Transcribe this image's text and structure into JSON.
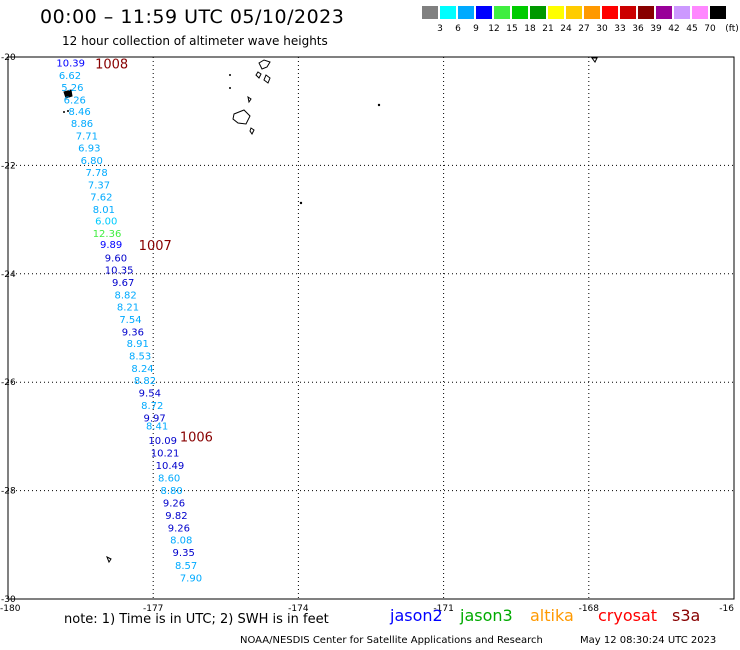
{
  "header": {
    "title": "00:00 – 11:59 UTC 05/10/2023",
    "subtitle": "12 hour collection of altimeter wave heights"
  },
  "legend": {
    "unit_label": "(ft)",
    "bins": [
      {
        "label": "3",
        "color": "#808080"
      },
      {
        "label": "6",
        "color": "#00ffff"
      },
      {
        "label": "9",
        "color": "#00aaff"
      },
      {
        "label": "12",
        "color": "#0000ff"
      },
      {
        "label": "15",
        "color": "#40ee40"
      },
      {
        "label": "18",
        "color": "#00cc00"
      },
      {
        "label": "21",
        "color": "#009900"
      },
      {
        "label": "24",
        "color": "#ffff00"
      },
      {
        "label": "27",
        "color": "#ffcc00"
      },
      {
        "label": "30",
        "color": "#ff9900"
      },
      {
        "label": "33",
        "color": "#ff0000"
      },
      {
        "label": "36",
        "color": "#cc0000"
      },
      {
        "label": "39",
        "color": "#880000"
      },
      {
        "label": "42",
        "color": "#990099"
      },
      {
        "label": "45",
        "color": "#cc99ff"
      },
      {
        "label": "70",
        "color": "#ff88ff"
      },
      {
        "label": "",
        "color": "#000000"
      }
    ]
  },
  "axes": {
    "lon_labels": [
      "-180",
      "-177",
      "-174",
      "-171",
      "-168",
      "-16"
    ],
    "lat_labels": [
      "-20",
      "-22",
      "-24",
      "-26",
      "-28",
      "-30"
    ]
  },
  "pressure_labels": [
    {
      "text": "1008",
      "lon": -178.2,
      "lat": -20.1
    },
    {
      "text": "1007",
      "lon": -177.3,
      "lat": -23.45
    },
    {
      "text": "1006",
      "lon": -176.45,
      "lat": -26.98
    }
  ],
  "wave_heights": [
    {
      "v": "10.39",
      "lon": -179.0,
      "lat": -20.1,
      "color": "#0000ff"
    },
    {
      "v": "6.62",
      "lon": -178.95,
      "lat": -20.33,
      "color": "#00aaff"
    },
    {
      "v": "5.26",
      "lon": -178.9,
      "lat": -20.55,
      "color": "#00aaff"
    },
    {
      "v": "6.26",
      "lon": -178.85,
      "lat": -20.78,
      "color": "#00aaff"
    },
    {
      "v": "8.46",
      "lon": -178.75,
      "lat": -21.0,
      "color": "#00aaff"
    },
    {
      "v": "8.86",
      "lon": -178.7,
      "lat": -21.22,
      "color": "#00aaff"
    },
    {
      "v": "7.71",
      "lon": -178.6,
      "lat": -21.45,
      "color": "#00aaff"
    },
    {
      "v": "6.93",
      "lon": -178.55,
      "lat": -21.67,
      "color": "#00aaff"
    },
    {
      "v": "6.80",
      "lon": -178.5,
      "lat": -21.9,
      "color": "#00aaff"
    },
    {
      "v": "7.78",
      "lon": -178.4,
      "lat": -22.12,
      "color": "#00aaff"
    },
    {
      "v": "7.37",
      "lon": -178.35,
      "lat": -22.35,
      "color": "#00aaff"
    },
    {
      "v": "7.62",
      "lon": -178.3,
      "lat": -22.57,
      "color": "#00aaff"
    },
    {
      "v": "8.01",
      "lon": -178.25,
      "lat": -22.8,
      "color": "#00aaff"
    },
    {
      "v": "6.00",
      "lon": -178.2,
      "lat": -23.02,
      "color": "#00ccff"
    },
    {
      "v": "12.36",
      "lon": -178.25,
      "lat": -23.25,
      "color": "#40ee40"
    },
    {
      "v": "9.89",
      "lon": -178.1,
      "lat": -23.45,
      "color": "#0000ff"
    },
    {
      "v": "9.60",
      "lon": -178.0,
      "lat": -23.7,
      "color": "#0000cc"
    },
    {
      "v": "10.35",
      "lon": -178.0,
      "lat": -23.92,
      "color": "#0000cc"
    },
    {
      "v": "9.67",
      "lon": -177.85,
      "lat": -24.15,
      "color": "#0000cc"
    },
    {
      "v": "8.82",
      "lon": -177.8,
      "lat": -24.38,
      "color": "#00aaff"
    },
    {
      "v": "8.21",
      "lon": -177.75,
      "lat": -24.6,
      "color": "#00aaff"
    },
    {
      "v": "7.54",
      "lon": -177.7,
      "lat": -24.83,
      "color": "#00aaff"
    },
    {
      "v": "9.36",
      "lon": -177.65,
      "lat": -25.06,
      "color": "#0000cc"
    },
    {
      "v": "8.91",
      "lon": -177.55,
      "lat": -25.28,
      "color": "#00aaff"
    },
    {
      "v": "8.53",
      "lon": -177.5,
      "lat": -25.51,
      "color": "#00aaff"
    },
    {
      "v": "8.24",
      "lon": -177.45,
      "lat": -25.74,
      "color": "#00aaff"
    },
    {
      "v": "8.82",
      "lon": -177.4,
      "lat": -25.96,
      "color": "#00aaff"
    },
    {
      "v": "9.54",
      "lon": -177.3,
      "lat": -26.19,
      "color": "#0000cc"
    },
    {
      "v": "8.72",
      "lon": -177.25,
      "lat": -26.42,
      "color": "#00aaff"
    },
    {
      "v": "9.97",
      "lon": -177.2,
      "lat": -26.65,
      "color": "#0000cc"
    },
    {
      "v": "8.41",
      "lon": -177.15,
      "lat": -26.8,
      "color": "#00aaff"
    },
    {
      "v": "10.09",
      "lon": -177.1,
      "lat": -27.07,
      "color": "#0000cc"
    },
    {
      "v": "10.21",
      "lon": -177.05,
      "lat": -27.3,
      "color": "#0000cc"
    },
    {
      "v": "10.49",
      "lon": -176.95,
      "lat": -27.53,
      "color": "#0000cc"
    },
    {
      "v": "8.60",
      "lon": -176.9,
      "lat": -27.76,
      "color": "#00aaff"
    },
    {
      "v": "8.80",
      "lon": -176.85,
      "lat": -27.99,
      "color": "#00aaff"
    },
    {
      "v": "9.26",
      "lon": -176.8,
      "lat": -28.22,
      "color": "#0000cc"
    },
    {
      "v": "9.82",
      "lon": -176.75,
      "lat": -28.45,
      "color": "#0000cc"
    },
    {
      "v": "9.26",
      "lon": -176.7,
      "lat": -28.68,
      "color": "#0000cc"
    },
    {
      "v": "8.08",
      "lon": -176.65,
      "lat": -28.9,
      "color": "#00aaff"
    },
    {
      "v": "9.35",
      "lon": -176.6,
      "lat": -29.13,
      "color": "#0000cc"
    },
    {
      "v": "8.57",
      "lon": -176.55,
      "lat": -29.37,
      "color": "#00aaff"
    },
    {
      "v": "7.90",
      "lon": -176.45,
      "lat": -29.6,
      "color": "#00aaff"
    }
  ],
  "footer": {
    "note": "note: 1) Time is in UTC; 2) SWH is in feet",
    "satellites": [
      {
        "name": "jason2",
        "color": "#0000ff"
      },
      {
        "name": "jason3",
        "color": "#00aa00"
      },
      {
        "name": "altika",
        "color": "#ff9900"
      },
      {
        "name": "cryosat",
        "color": "#ff0000"
      },
      {
        "name": "s3a",
        "color": "#880000"
      }
    ],
    "credit": "NOAA/NESDIS Center for Satellite Applications and Research",
    "timestamp": "May 12 08:30:24 UTC 2023"
  }
}
